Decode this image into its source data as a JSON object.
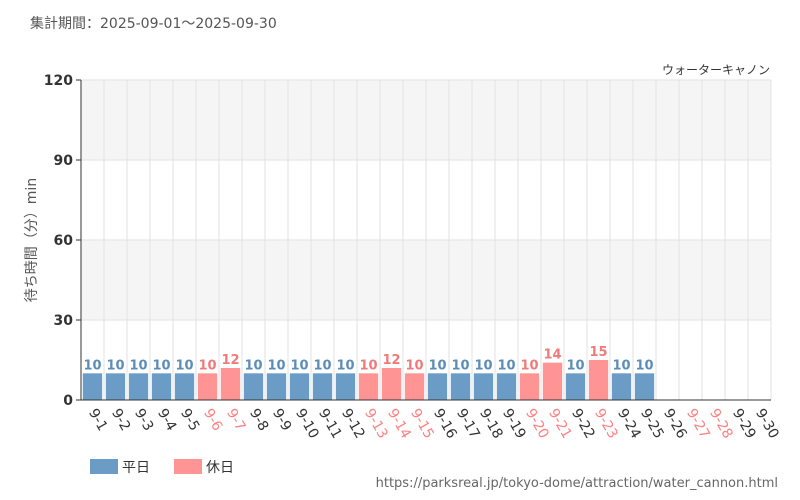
{
  "header": {
    "period": "集計期間：2025-09-01～2025-09-30"
  },
  "source_url": "https://parksreal.jp/tokyo-dome/attraction/water_cannon.html",
  "colors": {
    "weekday": "#6a9cc6",
    "holiday": "#ff9494",
    "weekday_text": "#333333",
    "holiday_text": "#ff8080",
    "weekday_label": "#5b8db8",
    "holiday_label": "#f07a7a"
  },
  "chart_data": {
    "type": "bar",
    "series_title": "ウォーターキャノン",
    "ylabel": "待ち時間（分）min",
    "ylim": [
      0,
      120
    ],
    "yticks": [
      0,
      30,
      60,
      90,
      120
    ],
    "grid": true,
    "legend_position": "bottom-left",
    "legend": [
      {
        "key": "weekday",
        "label": "平日"
      },
      {
        "key": "holiday",
        "label": "休日"
      }
    ],
    "categories": [
      "9-1",
      "9-2",
      "9-3",
      "9-4",
      "9-5",
      "9-6",
      "9-7",
      "9-8",
      "9-9",
      "9-10",
      "9-11",
      "9-12",
      "9-13",
      "9-14",
      "9-15",
      "9-16",
      "9-17",
      "9-18",
      "9-19",
      "9-20",
      "9-21",
      "9-22",
      "9-23",
      "9-24",
      "9-25",
      "9-26",
      "9-27",
      "9-28",
      "9-29",
      "9-30"
    ],
    "day_type": [
      "weekday",
      "weekday",
      "weekday",
      "weekday",
      "weekday",
      "holiday",
      "holiday",
      "weekday",
      "weekday",
      "weekday",
      "weekday",
      "weekday",
      "holiday",
      "holiday",
      "holiday",
      "weekday",
      "weekday",
      "weekday",
      "weekday",
      "holiday",
      "holiday",
      "weekday",
      "holiday",
      "weekday",
      "weekday",
      "weekday",
      "holiday",
      "holiday",
      "weekday",
      "weekday"
    ],
    "values": [
      10,
      10,
      10,
      10,
      10,
      10,
      12,
      10,
      10,
      10,
      10,
      10,
      10,
      12,
      10,
      10,
      10,
      10,
      10,
      10,
      14,
      10,
      15,
      10,
      10,
      null,
      null,
      null,
      null,
      null
    ]
  }
}
